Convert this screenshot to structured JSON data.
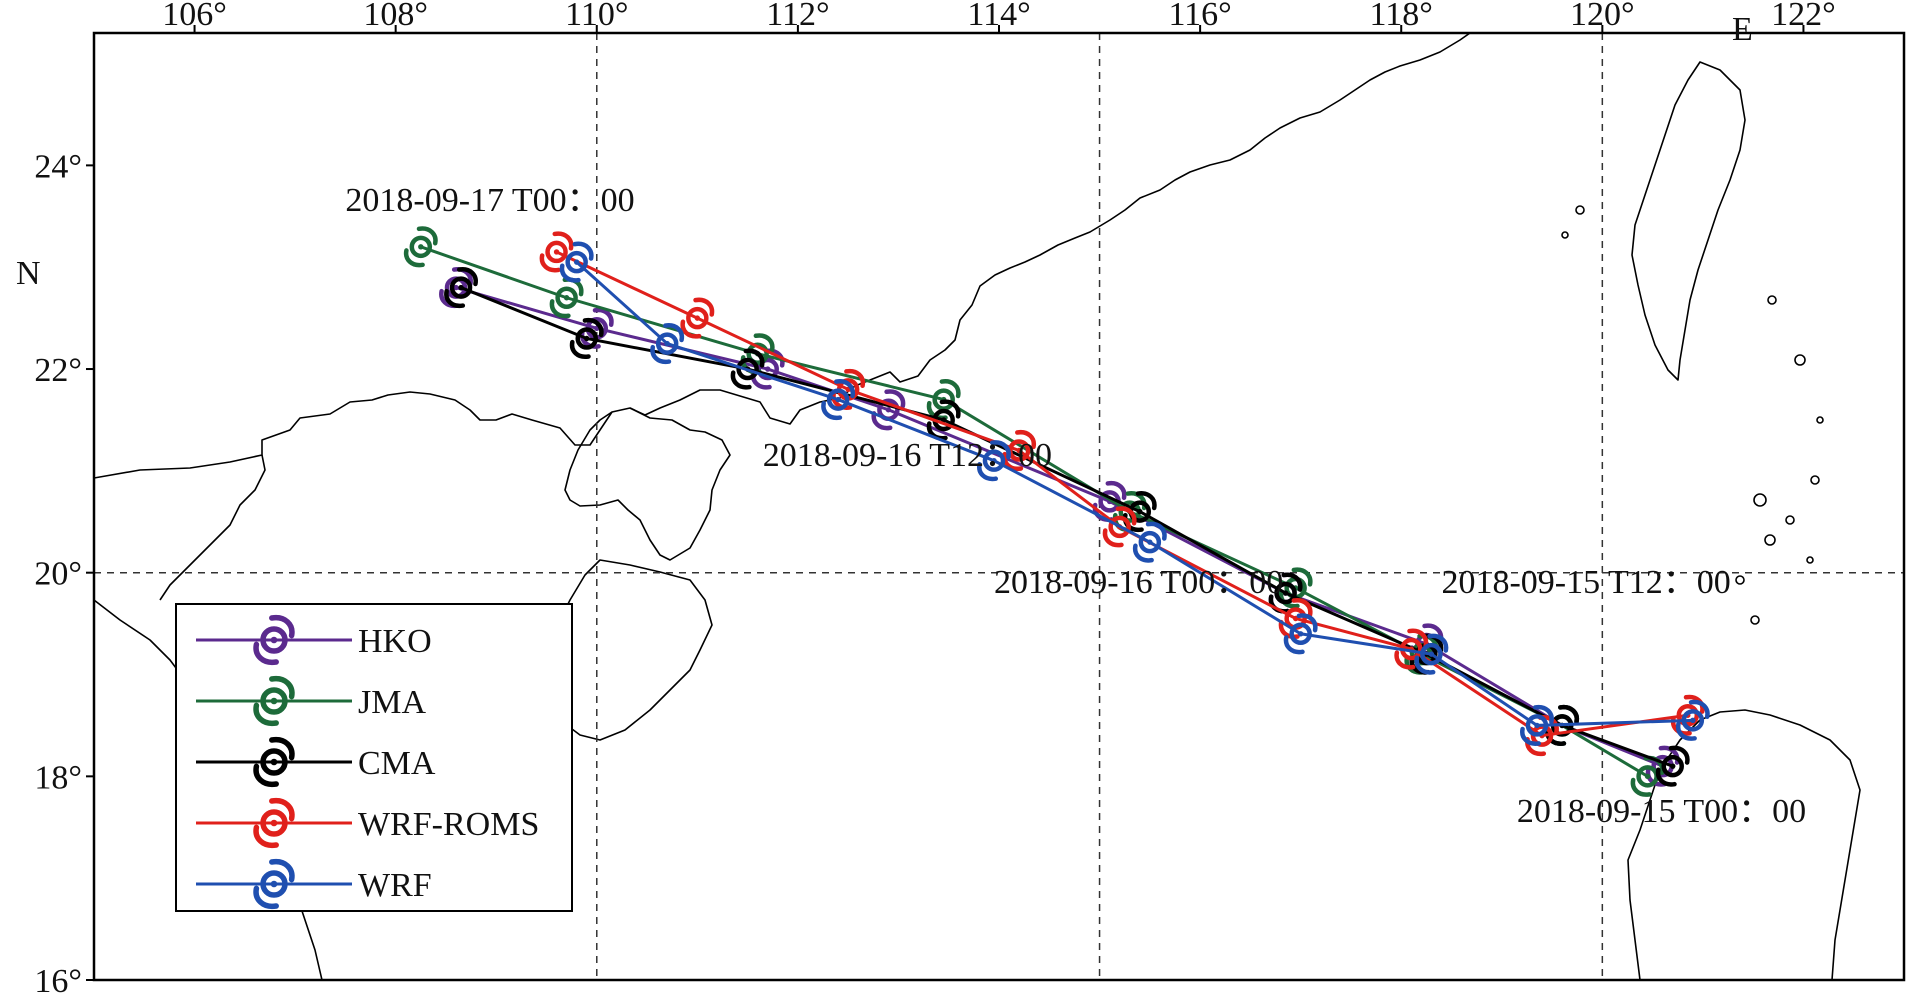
{
  "map": {
    "lon_range": [
      105,
      123
    ],
    "lat_range": [
      16,
      25.3
    ],
    "lon_ticks": [
      {
        "value": 106,
        "label": "106°"
      },
      {
        "value": 108,
        "label": "108°"
      },
      {
        "value": 110,
        "label": "110°"
      },
      {
        "value": 112,
        "label": "112°"
      },
      {
        "value": 114,
        "label": "114°"
      },
      {
        "value": 116,
        "label": "116°"
      },
      {
        "value": 118,
        "label": "118°"
      },
      {
        "value": 120,
        "label": "120°"
      },
      {
        "value": 122,
        "label": "122°"
      }
    ],
    "lat_ticks": [
      {
        "value": 24,
        "label": "24°"
      },
      {
        "value": 22,
        "label": "22°"
      },
      {
        "value": 20,
        "label": "20°"
      },
      {
        "value": 18,
        "label": "18°"
      },
      {
        "value": 16,
        "label": "16°"
      }
    ],
    "lon_suffix": "E",
    "lat_suffix": "N",
    "grid_lons": [
      110,
      115,
      120
    ],
    "grid_lats": [
      20
    ],
    "annotations": [
      {
        "text": "2018-09-17  T00：00",
        "lon": 107.5,
        "lat": 23.55
      },
      {
        "text": "2018-09-16  T12：00",
        "lon": 111.65,
        "lat": 21.05
      },
      {
        "text": "2018-09-16  T00：00",
        "lon": 113.95,
        "lat": 19.8
      },
      {
        "text": "2018-09-15  T12：00",
        "lon": 118.4,
        "lat": 19.8
      },
      {
        "text": "2018-09-15  T00：00",
        "lon": 119.15,
        "lat": 17.55
      }
    ]
  },
  "legend": {
    "position": "bottom-left",
    "entries": [
      "HKO",
      "JMA",
      "CMA",
      "WRF-ROMS",
      "WRF"
    ]
  },
  "tracks": [
    {
      "name": "HKO",
      "color": "#5b2a8e",
      "points": [
        [
          120.6,
          18.1
        ],
        [
          119.6,
          18.5
        ],
        [
          118.25,
          19.3
        ],
        [
          116.85,
          19.8
        ],
        [
          115.1,
          20.7
        ],
        [
          112.9,
          21.6
        ],
        [
          111.7,
          22.0
        ],
        [
          110.0,
          22.4
        ],
        [
          108.6,
          22.8
        ]
      ]
    },
    {
      "name": "JMA",
      "color": "#1d6b3a",
      "points": [
        [
          120.45,
          18.0
        ],
        [
          119.6,
          18.5
        ],
        [
          118.2,
          19.2
        ],
        [
          116.95,
          19.85
        ],
        [
          115.3,
          20.6
        ],
        [
          113.45,
          21.7
        ],
        [
          111.6,
          22.15
        ],
        [
          109.7,
          22.7
        ],
        [
          108.25,
          23.2
        ]
      ]
    },
    {
      "name": "CMA",
      "color": "#000000",
      "points": [
        [
          120.7,
          18.1
        ],
        [
          119.6,
          18.5
        ],
        [
          118.25,
          19.2
        ],
        [
          116.85,
          19.8
        ],
        [
          115.4,
          20.6
        ],
        [
          113.45,
          21.5
        ],
        [
          111.5,
          22.0
        ],
        [
          109.9,
          22.3
        ],
        [
          108.65,
          22.8
        ]
      ]
    },
    {
      "name": "WRF-ROMS",
      "color": "#e0201b",
      "points": [
        [
          120.85,
          18.6
        ],
        [
          119.4,
          18.4
        ],
        [
          118.1,
          19.25
        ],
        [
          116.95,
          19.55
        ],
        [
          115.2,
          20.45
        ],
        [
          114.2,
          21.2
        ],
        [
          112.5,
          21.8
        ],
        [
          111.0,
          22.5
        ],
        [
          109.6,
          23.15
        ]
      ]
    },
    {
      "name": "WRF",
      "color": "#1f4fb0",
      "points": [
        [
          120.9,
          18.55
        ],
        [
          119.35,
          18.5
        ],
        [
          118.3,
          19.2
        ],
        [
          117.0,
          19.4
        ],
        [
          115.5,
          20.3
        ],
        [
          113.95,
          21.1
        ],
        [
          112.4,
          21.7
        ],
        [
          110.7,
          22.25
        ],
        [
          109.8,
          23.05
        ]
      ]
    }
  ]
}
